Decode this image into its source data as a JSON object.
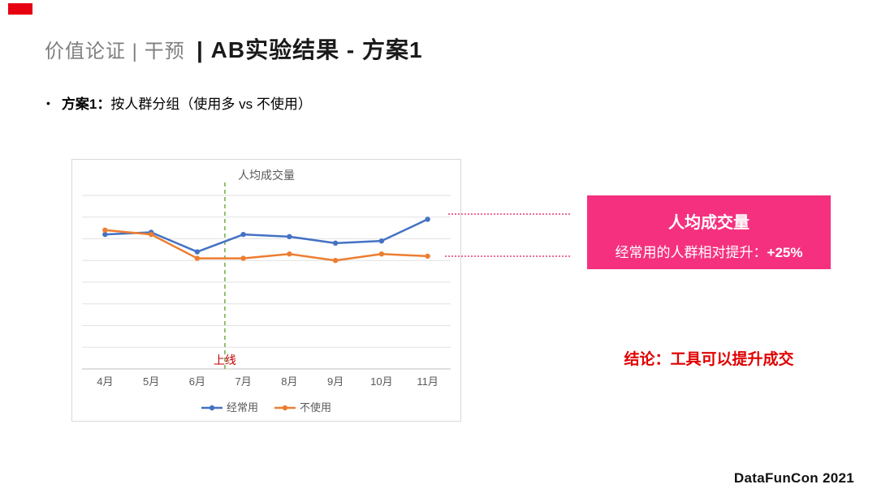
{
  "slide": {
    "accent_red": "#E60012",
    "footer": "DataFunCon 2021"
  },
  "header": {
    "title_gray": "价值论证 | 干预",
    "title_bold": "| AB实验结果 - 方案1"
  },
  "bullet": {
    "marker": "•",
    "label_bold": "方案1：",
    "text": "按人群分组（使用多 vs 不使用）"
  },
  "chart_data": {
    "type": "line",
    "title": "人均成交量",
    "categories": [
      "4月",
      "5月",
      "6月",
      "7月",
      "8月",
      "9月",
      "10月",
      "11月"
    ],
    "series": [
      {
        "name": "经常用",
        "color": "#4472C4",
        "values": [
          6.2,
          6.3,
          5.4,
          6.2,
          6.1,
          5.8,
          5.9,
          6.9
        ]
      },
      {
        "name": "不使用",
        "color": "#ED7D31",
        "values": [
          6.4,
          6.2,
          5.1,
          5.1,
          5.3,
          5.0,
          5.3,
          5.2
        ]
      }
    ],
    "ylim": [
      0,
      8
    ],
    "grid": true,
    "legend_position": "bottom",
    "axis_label_color": "#595959",
    "gridline_color": "#E2E2E2",
    "annotation": {
      "label": "上线",
      "x_between": [
        "6月",
        "7月"
      ],
      "color": "#C00000",
      "line_color": "#70AD47",
      "line_style": "dashed"
    }
  },
  "callout": {
    "bg": "#F5317F",
    "title": "人均成交量",
    "line_prefix": "经常用的人群相对提升：",
    "line_value": "+25%"
  },
  "conclusion": "结论：工具可以提升成交"
}
